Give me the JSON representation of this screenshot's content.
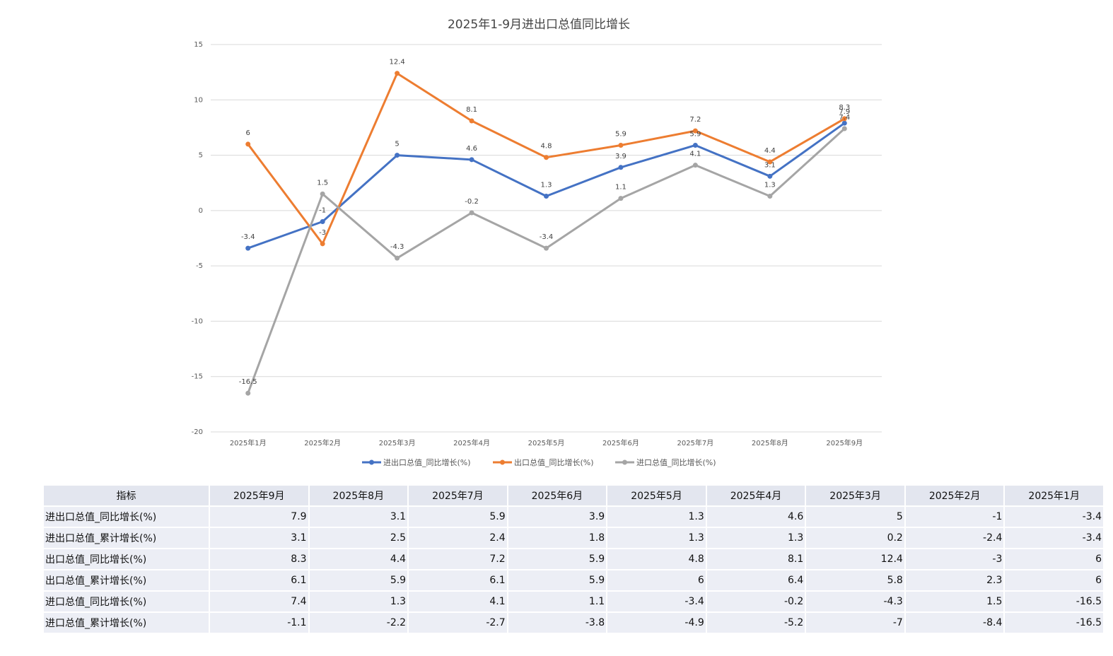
{
  "chart_data": {
    "type": "line",
    "title": "2025年1-9月进出口总值同比增长",
    "categories": [
      "2025年1月",
      "2025年2月",
      "2025年3月",
      "2025年4月",
      "2025年5月",
      "2025年6月",
      "2025年7月",
      "2025年8月",
      "2025年9月"
    ],
    "yticks": [
      "15",
      "10",
      "5",
      "0",
      "-5",
      "-10",
      "-15",
      "-20"
    ],
    "ylim": [
      -20,
      15
    ],
    "grid": true,
    "legend_position": "bottom",
    "series": [
      {
        "name": "进出口总值_同比增长(%)",
        "color": "#4472c4",
        "values": [
          -3.4,
          -1,
          5,
          4.6,
          1.3,
          3.9,
          5.9,
          3.1,
          7.9
        ],
        "labels": [
          "-3.4",
          "-1",
          "5",
          "4.6",
          "1.3",
          "3.9",
          "5.9",
          "3.1",
          "7.9"
        ]
      },
      {
        "name": "出口总值_同比增长(%)",
        "color": "#ed7d31",
        "values": [
          6,
          -3,
          12.4,
          8.1,
          4.8,
          5.9,
          7.2,
          4.4,
          8.3
        ],
        "labels": [
          "6",
          "-3",
          "12.4",
          "8.1",
          "4.8",
          "5.9",
          "7.2",
          "4.4",
          "8.3"
        ]
      },
      {
        "name": "进口总值_同比增长(%)",
        "color": "#a5a5a5",
        "values": [
          -16.5,
          1.5,
          -4.3,
          -0.2,
          -3.4,
          1.1,
          4.1,
          1.3,
          7.4
        ],
        "labels": [
          "-16.5",
          "1.5",
          "-4.3",
          "-0.2",
          "-3.4",
          "1.1",
          "4.1",
          "1.3",
          "7.4"
        ]
      }
    ]
  },
  "table": {
    "headers": [
      "指标",
      "2025年9月",
      "2025年8月",
      "2025年7月",
      "2025年6月",
      "2025年5月",
      "2025年4月",
      "2025年3月",
      "2025年2月",
      "2025年1月"
    ],
    "rows": [
      [
        "进出口总值_同比增长(%)",
        "7.9",
        "3.1",
        "5.9",
        "3.9",
        "1.3",
        "4.6",
        "5",
        "-1",
        "-3.4"
      ],
      [
        "进出口总值_累计增长(%)",
        "3.1",
        "2.5",
        "2.4",
        "1.8",
        "1.3",
        "1.3",
        "0.2",
        "-2.4",
        "-3.4"
      ],
      [
        "出口总值_同比增长(%)",
        "8.3",
        "4.4",
        "7.2",
        "5.9",
        "4.8",
        "8.1",
        "12.4",
        "-3",
        "6"
      ],
      [
        "出口总值_累计增长(%)",
        "6.1",
        "5.9",
        "6.1",
        "5.9",
        "6",
        "6.4",
        "5.8",
        "2.3",
        "6"
      ],
      [
        "进口总值_同比增长(%)",
        "7.4",
        "1.3",
        "4.1",
        "1.1",
        "-3.4",
        "-0.2",
        "-4.3",
        "1.5",
        "-16.5"
      ],
      [
        "进口总值_累计增长(%)",
        "-1.1",
        "-2.2",
        "-2.7",
        "-3.8",
        "-4.9",
        "-5.2",
        "-7",
        "-8.4",
        "-16.5"
      ]
    ]
  }
}
